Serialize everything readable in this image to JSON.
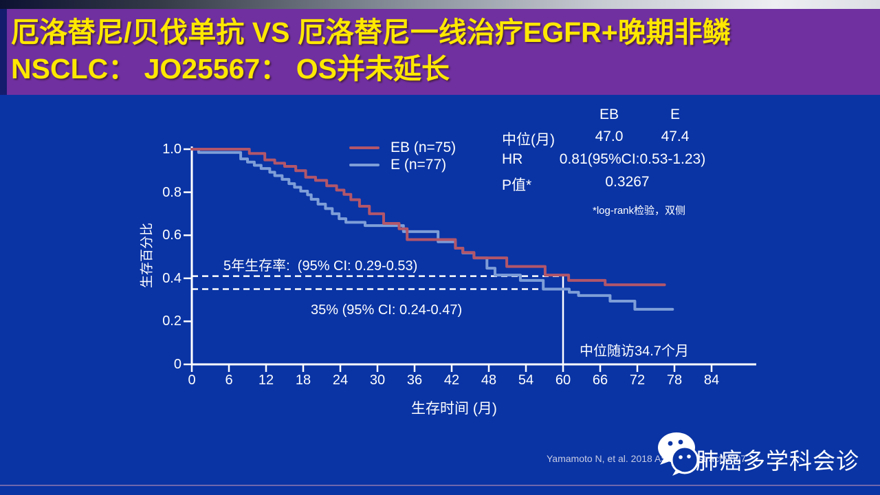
{
  "title": {
    "line1": "厄洛替尼/贝伐单抗 VS 厄洛替尼一线治疗EGFR+晚期非鳞",
    "line2": "NSCLC： JO25567： OS并未延长"
  },
  "colors": {
    "background": "#0a34a4",
    "title_bar": "#7030a0",
    "title_text": "#ffe800",
    "left_stripe": "#141c6e",
    "axis": "#ffffff",
    "eb_curve": "#b2566a",
    "e_curve": "#7e9ed8",
    "reference_lines": "#ffffff",
    "footer_divider": "#6f67ad"
  },
  "legend": {
    "items": [
      {
        "label": "EB (n=75)",
        "color": "#b2566a"
      },
      {
        "label": "E (n=77)",
        "color": "#7e9ed8"
      }
    ]
  },
  "stats_table": {
    "col_headers": [
      "EB",
      "E"
    ],
    "median_row": {
      "label": "中位(月)",
      "eb": "47.0",
      "e": "47.4"
    },
    "hr_row": {
      "label": "HR",
      "value": "0.81(95%CI:0.53-1.23)"
    },
    "p_row": {
      "label": "P值*",
      "value": "0.3267"
    },
    "footnote": "*log-rank检验，双侧"
  },
  "annotations": {
    "five_year_label": "5年生存率:  (95% CI: 0.29-0.53)",
    "e_five_year_label": "35% (95% CI: 0.24-0.47)",
    "median_followup": "中位随访34.7个月"
  },
  "footer": {
    "citation": "Yamamoto N, et al. 2018 ASCO. Abstract 9007",
    "brand": "肺癌多学科会诊",
    "logo": "wechat-icon"
  },
  "chart_data": {
    "type": "line",
    "subtype": "kaplan-meier-step",
    "title": "",
    "xlabel": "生存时间 (月)",
    "ylabel": "生存百分比",
    "xlim": [
      0,
      84
    ],
    "ylim": [
      0,
      1.0
    ],
    "grid": false,
    "legend_position": "inside-top-center",
    "x_ticks": [
      0,
      6,
      12,
      18,
      24,
      30,
      36,
      42,
      48,
      54,
      60,
      66,
      72,
      78,
      84
    ],
    "x_tick_labels": [
      "0",
      "6",
      "12",
      "18",
      "24",
      "30",
      "36",
      "42",
      "48",
      "54",
      "60",
      "66",
      "72",
      "78",
      "84"
    ],
    "y_ticks": [
      0,
      0.2,
      0.4,
      0.6,
      0.8,
      1.0
    ],
    "y_tick_labels": [
      "0",
      "0.2",
      "0.4",
      "0.6",
      "0.8",
      "1.0"
    ],
    "series": [
      {
        "name": "EB (n=75)",
        "color": "#b2566a",
        "points": [
          [
            0,
            1.0
          ],
          [
            9.3,
            0.98
          ],
          [
            11.8,
            0.95
          ],
          [
            13.4,
            0.935
          ],
          [
            15.0,
            0.92
          ],
          [
            16.8,
            0.9
          ],
          [
            18.4,
            0.87
          ],
          [
            20.0,
            0.855
          ],
          [
            21.8,
            0.83
          ],
          [
            23.4,
            0.81
          ],
          [
            24.6,
            0.79
          ],
          [
            25.7,
            0.765
          ],
          [
            27.1,
            0.735
          ],
          [
            28.7,
            0.7
          ],
          [
            31.0,
            0.655
          ],
          [
            33.5,
            0.63
          ],
          [
            34.8,
            0.58
          ],
          [
            42.6,
            0.54
          ],
          [
            43.8,
            0.52
          ],
          [
            45.6,
            0.495
          ],
          [
            50.9,
            0.455
          ],
          [
            57.1,
            0.415
          ],
          [
            60.9,
            0.39
          ],
          [
            66.8,
            0.37
          ],
          [
            76.4,
            0.37
          ]
        ]
      },
      {
        "name": "E (n=77)",
        "color": "#7e9ed8",
        "points": [
          [
            0,
            1.0
          ],
          [
            1.1,
            0.985
          ],
          [
            7.9,
            0.955
          ],
          [
            9.0,
            0.94
          ],
          [
            10.1,
            0.925
          ],
          [
            11.2,
            0.91
          ],
          [
            12.6,
            0.893
          ],
          [
            13.4,
            0.877
          ],
          [
            14.6,
            0.86
          ],
          [
            15.7,
            0.84
          ],
          [
            16.6,
            0.823
          ],
          [
            17.6,
            0.805
          ],
          [
            18.7,
            0.788
          ],
          [
            19.3,
            0.767
          ],
          [
            20.4,
            0.745
          ],
          [
            21.6,
            0.724
          ],
          [
            22.7,
            0.7
          ],
          [
            23.8,
            0.677
          ],
          [
            24.9,
            0.66
          ],
          [
            28.0,
            0.645
          ],
          [
            34.2,
            0.617
          ],
          [
            39.8,
            0.57
          ],
          [
            42.6,
            0.54
          ],
          [
            43.8,
            0.518
          ],
          [
            45.6,
            0.495
          ],
          [
            47.7,
            0.447
          ],
          [
            49.0,
            0.415
          ],
          [
            53.1,
            0.39
          ],
          [
            56.8,
            0.35
          ],
          [
            61.0,
            0.335
          ],
          [
            62.5,
            0.32
          ],
          [
            67.6,
            0.294
          ],
          [
            71.6,
            0.256
          ],
          [
            77.7,
            0.256
          ]
        ]
      }
    ],
    "reference_lines": {
      "horizontal_dashed_y": [
        0.41,
        0.35
      ],
      "vertical_solid_x": 60,
      "dashed_lines_end_x": 60
    }
  }
}
